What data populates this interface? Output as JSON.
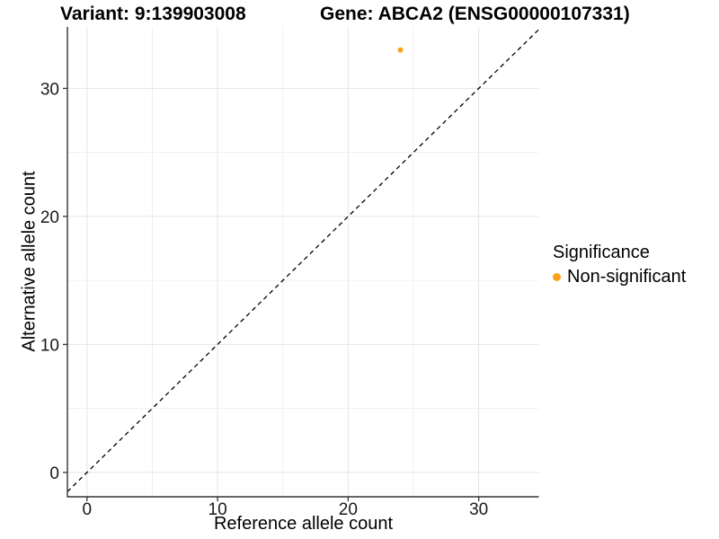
{
  "chart_data": {
    "type": "scatter",
    "title_left": "Variant: 9:139903008",
    "title_right": "Gene: ABCA2 (ENSG00000107331)",
    "xlabel": "Reference allele count",
    "ylabel": "Alternative allele count",
    "xlim": [
      -1.5,
      34.6
    ],
    "ylim": [
      -1.9,
      34.8
    ],
    "x_ticks": [
      0,
      10,
      20,
      30
    ],
    "y_ticks": [
      0,
      10,
      20,
      30
    ],
    "x_minor_ticks": [
      5,
      15,
      25
    ],
    "y_minor_ticks": [
      5,
      15,
      25
    ],
    "grid": true,
    "identity_line": {
      "style": "dashed",
      "slope": 1,
      "intercept": 0,
      "color": "#000000"
    },
    "series": [
      {
        "name": "Non-significant",
        "color": "#FAA21B",
        "points": [
          {
            "x": 24,
            "y": 33
          }
        ]
      }
    ],
    "legend": {
      "title": "Significance",
      "position": "right",
      "entries": [
        {
          "label": "Non-significant",
          "color": "#FAA21B"
        }
      ]
    },
    "colors": {
      "background": "#FFFFFF",
      "grid_major": "#E4E4E4",
      "grid_minor": "#F0F0F0",
      "axis_line": "#333333",
      "tick_mark": "#333333",
      "tick_label": "#1A1A1A",
      "text": "#000000",
      "point": "#FAA21B"
    }
  }
}
